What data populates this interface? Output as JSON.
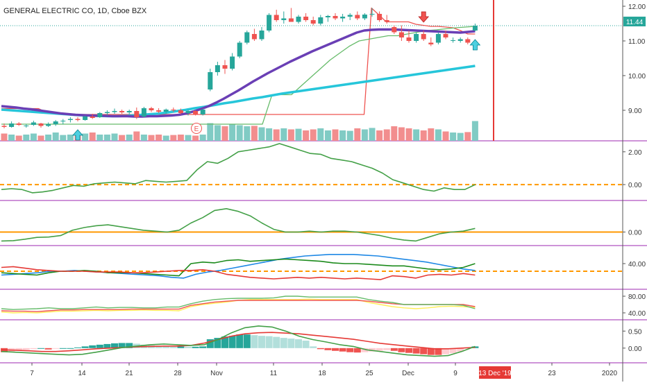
{
  "header": {
    "title": "GENERAL ELECTRIC CO, 1D, Cboe BZX"
  },
  "colors": {
    "up": "#26a69a",
    "down": "#ef5350",
    "vol_up": "#80cbc4",
    "vol_down": "#f28e8e",
    "ma_slow": "#6a3fb5",
    "ma_long": "#26c6da",
    "band_green": "#66bb6a",
    "band_red": "#ef5350",
    "zero": "#ff9800",
    "divider": "#9c27b0",
    "cursor": "#e53935",
    "macd_pos": "#26a69a",
    "macd_pos_light": "#b2dfdb",
    "macd_neg": "#ef5350",
    "macd_neg_light": "#ffcdd2"
  },
  "time_axis": {
    "labels": [
      "7",
      "14",
      "21",
      "28",
      "Nov",
      "11",
      "18",
      "25",
      "Dec",
      "9",
      "23",
      "2020"
    ],
    "cursor_label": "13 Dec '19"
  },
  "event_marker": {
    "label": "E"
  },
  "last_price_label": "11.44",
  "chart_data": [
    {
      "type": "candlestick",
      "title": "GENERAL ELECTRIC CO, 1D, Cboe BZX",
      "ylim": [
        8.2,
        12.1
      ],
      "yticks": [
        "12.00",
        "11.00",
        "10.00",
        "9.00"
      ],
      "ytick_values": [
        12,
        11,
        10,
        9
      ],
      "last_price": 11.44,
      "ohlc": [
        [
          8.55,
          8.62,
          8.48,
          8.52
        ],
        [
          8.52,
          8.68,
          8.5,
          8.62
        ],
        [
          8.62,
          8.66,
          8.55,
          8.58
        ],
        [
          8.55,
          8.6,
          8.5,
          8.56
        ],
        [
          8.58,
          8.7,
          8.55,
          8.65
        ],
        [
          8.62,
          8.64,
          8.5,
          8.55
        ],
        [
          8.55,
          8.65,
          8.52,
          8.6
        ],
        [
          8.6,
          8.72,
          8.55,
          8.68
        ],
        [
          8.68,
          8.75,
          8.6,
          8.7
        ],
        [
          8.72,
          8.8,
          8.65,
          8.75
        ],
        [
          8.75,
          8.8,
          8.68,
          8.72
        ],
        [
          8.72,
          8.85,
          8.7,
          8.82
        ],
        [
          8.82,
          8.9,
          8.75,
          8.78
        ],
        [
          8.8,
          8.95,
          8.78,
          8.92
        ],
        [
          8.92,
          9.0,
          8.85,
          8.95
        ],
        [
          8.95,
          9.05,
          8.9,
          8.98
        ],
        [
          8.98,
          9.02,
          8.9,
          8.94
        ],
        [
          8.94,
          9.02,
          8.88,
          8.98
        ],
        [
          8.98,
          9.08,
          8.75,
          8.8
        ],
        [
          8.82,
          9.1,
          8.8,
          9.06
        ],
        [
          9.06,
          9.1,
          8.95,
          9.0
        ],
        [
          9.0,
          9.06,
          8.92,
          8.96
        ],
        [
          8.96,
          9.05,
          8.9,
          9.02
        ],
        [
          9.02,
          9.08,
          8.95,
          9.0
        ],
        [
          9.0,
          9.05,
          8.88,
          8.92
        ],
        [
          8.92,
          9.02,
          8.85,
          8.98
        ],
        [
          8.98,
          9.0,
          8.85,
          8.88
        ],
        [
          8.88,
          9.05,
          8.85,
          9.02
        ],
        [
          9.6,
          10.2,
          9.55,
          10.1
        ],
        [
          10.1,
          10.4,
          10.0,
          10.3
        ],
        [
          10.3,
          10.45,
          10.05,
          10.2
        ],
        [
          10.2,
          10.65,
          10.15,
          10.55
        ],
        [
          10.55,
          11.0,
          10.5,
          10.95
        ],
        [
          10.95,
          11.3,
          10.9,
          11.25
        ],
        [
          11.2,
          11.35,
          11.0,
          11.05
        ],
        [
          11.05,
          11.4,
          11.0,
          11.3
        ],
        [
          11.3,
          11.8,
          11.25,
          11.75
        ],
        [
          11.75,
          11.9,
          11.55,
          11.6
        ],
        [
          11.6,
          11.85,
          11.5,
          11.65
        ],
        [
          11.65,
          11.95,
          11.55,
          11.55
        ],
        [
          11.55,
          11.75,
          11.5,
          11.7
        ],
        [
          11.7,
          11.8,
          11.55,
          11.6
        ],
        [
          11.6,
          11.7,
          11.45,
          11.5
        ],
        [
          11.5,
          11.75,
          11.45,
          11.68
        ],
        [
          11.68,
          11.75,
          11.55,
          11.72
        ],
        [
          11.72,
          11.8,
          11.6,
          11.65
        ],
        [
          11.65,
          11.78,
          11.55,
          11.7
        ],
        [
          11.7,
          11.8,
          11.6,
          11.75
        ],
        [
          11.75,
          11.85,
          11.6,
          11.65
        ],
        [
          11.65,
          11.8,
          11.6,
          11.76
        ],
        [
          11.76,
          11.95,
          11.7,
          11.78
        ],
        [
          11.78,
          11.85,
          11.55,
          11.6
        ],
        [
          11.6,
          11.75,
          11.5,
          11.55
        ],
        [
          11.4,
          11.45,
          11.2,
          11.25
        ],
        [
          11.25,
          11.45,
          11.0,
          11.1
        ],
        [
          11.1,
          11.3,
          10.95,
          11.0
        ],
        [
          11.0,
          11.25,
          10.95,
          11.2
        ],
        [
          11.2,
          11.3,
          11.0,
          11.05
        ],
        [
          10.95,
          11.1,
          10.85,
          10.9
        ],
        [
          10.95,
          11.25,
          10.9,
          11.2
        ],
        [
          11.2,
          11.3,
          11.05,
          11.1
        ],
        [
          11.0,
          11.1,
          10.95,
          11.02
        ],
        [
          11.0,
          11.1,
          10.95,
          11.05
        ],
        [
          11.05,
          11.1,
          10.9,
          10.95
        ],
        [
          11.3,
          11.5,
          11.28,
          11.44
        ]
      ],
      "ma_slow": [
        9.12,
        9.1,
        9.08,
        9.05,
        9.03,
        9.0,
        8.97,
        8.94,
        8.91,
        8.89,
        8.87,
        8.86,
        8.85,
        8.84,
        8.84,
        8.83,
        8.83,
        8.83,
        8.82,
        8.82,
        8.83,
        8.83,
        8.84,
        8.85,
        8.87,
        8.91,
        8.97,
        9.04,
        9.12,
        9.22,
        9.33,
        9.45,
        9.57,
        9.7,
        9.83,
        9.95,
        10.07,
        10.18,
        10.29,
        10.4,
        10.5,
        10.6,
        10.7,
        10.79,
        10.88,
        10.97,
        11.06,
        11.15,
        11.24,
        11.3,
        11.32,
        11.33,
        11.33,
        11.33,
        11.32,
        11.31,
        11.3,
        11.29,
        11.28,
        11.27,
        11.26,
        11.25,
        11.24,
        11.26,
        11.28
      ],
      "ma_long": [
        9.02,
        9.0,
        8.98,
        8.96,
        8.94,
        8.92,
        8.9,
        8.88,
        8.86,
        8.85,
        8.84,
        8.83,
        8.83,
        8.84,
        8.86,
        8.88,
        8.9,
        8.93,
        8.97,
        9.01,
        9.06,
        9.1,
        9.15,
        9.2,
        9.24,
        9.29,
        9.34,
        9.38,
        9.43,
        9.48,
        9.52,
        9.56,
        9.6,
        9.64,
        9.68,
        9.72,
        9.76,
        9.8,
        9.84,
        9.88,
        9.92,
        9.96,
        10.0,
        10.04,
        10.08,
        10.12,
        10.16,
        10.2,
        10.24,
        10.28
      ],
      "band_upper": [
        9.05,
        9.05,
        9.05,
        9.05,
        9.05,
        9.05,
        8.95,
        8.9,
        8.9,
        8.9,
        8.88,
        8.88,
        8.88,
        8.88,
        8.88,
        8.88,
        8.88,
        8.88,
        8.88,
        8.88,
        8.88,
        8.88,
        8.88,
        8.88,
        8.88,
        8.88,
        8.88,
        8.88,
        8.88,
        8.88,
        8.88,
        8.88,
        8.88,
        8.88,
        8.88,
        8.88,
        8.88,
        8.88,
        8.88,
        8.88,
        8.88,
        8.88,
        8.88,
        8.88,
        8.88,
        8.88,
        8.88,
        8.88,
        8.88,
        8.88,
        11.95,
        11.75,
        11.55,
        11.55,
        11.55,
        11.55,
        11.48,
        11.45,
        11.42,
        11.42,
        11.4,
        11.38,
        11.3,
        11.2,
        11.2
      ],
      "band_lower": [
        8.6,
        8.6,
        8.6,
        8.6,
        8.6,
        8.6,
        8.6,
        8.6,
        8.6,
        8.6,
        8.6,
        8.6,
        8.6,
        8.6,
        8.6,
        8.6,
        8.6,
        8.6,
        8.6,
        8.6,
        8.6,
        8.6,
        8.6,
        8.6,
        8.6,
        8.6,
        8.6,
        8.6,
        9.45,
        9.45,
        9.45,
        9.7,
        9.95,
        10.2,
        10.45,
        10.65,
        10.85,
        11.0,
        11.05,
        11.1,
        11.15,
        11.15,
        11.2,
        11.25,
        11.3,
        11.32,
        11.35,
        11.38,
        11.4,
        11.42
      ],
      "volume": [
        0.35,
        0.3,
        0.25,
        0.3,
        0.35,
        0.25,
        0.3,
        0.4,
        0.28,
        0.3,
        0.25,
        0.35,
        0.4,
        0.3,
        0.3,
        0.35,
        0.28,
        0.3,
        0.45,
        0.3,
        0.28,
        0.3,
        0.25,
        0.28,
        0.3,
        0.28,
        0.25,
        0.3,
        0.85,
        0.75,
        0.7,
        0.8,
        0.75,
        0.7,
        0.72,
        0.65,
        0.6,
        0.55,
        0.6,
        0.55,
        0.58,
        0.5,
        0.55,
        0.6,
        0.5,
        0.55,
        0.5,
        0.48,
        0.6,
        0.55,
        0.62,
        0.5,
        0.55,
        0.7,
        0.65,
        0.6,
        0.55,
        0.5,
        0.6,
        0.55,
        0.45,
        0.4,
        0.38,
        0.42,
        0.95
      ],
      "signals": [
        {
          "index": 10,
          "direction": "up"
        },
        {
          "index": 57,
          "direction": "down"
        },
        {
          "index": 64,
          "direction": "up"
        }
      ]
    },
    {
      "type": "line",
      "yticks": [
        "2.00",
        "0.00"
      ],
      "ytick_values": [
        2.0,
        0.0
      ],
      "ylim": [
        -0.8,
        2.5
      ],
      "reference": 0.0,
      "values": [
        -0.3,
        -0.25,
        -0.3,
        -0.5,
        -0.45,
        -0.35,
        -0.2,
        -0.05,
        -0.1,
        0.05,
        0.1,
        0.15,
        0.1,
        0.05,
        0.25,
        0.2,
        0.15,
        0.2,
        0.25,
        0.9,
        1.4,
        1.3,
        1.6,
        2.0,
        2.1,
        2.2,
        2.3,
        2.5,
        2.3,
        2.1,
        1.9,
        1.85,
        1.6,
        1.5,
        1.4,
        1.2,
        1.0,
        0.7,
        0.3,
        0.1,
        -0.1,
        -0.3,
        -0.4,
        -0.2,
        -0.3,
        -0.3,
        0.0
      ]
    },
    {
      "type": "line",
      "yticks": [
        "0.00"
      ],
      "ytick_values": [
        0.0
      ],
      "ylim": [
        -0.6,
        1.6
      ],
      "reference": 0.0,
      "values": [
        -0.5,
        -0.48,
        -0.4,
        -0.3,
        -0.28,
        -0.2,
        0.1,
        0.25,
        0.35,
        0.4,
        0.3,
        0.2,
        0.1,
        0.05,
        0.0,
        0.1,
        0.5,
        0.8,
        1.2,
        1.3,
        1.15,
        0.9,
        0.5,
        0.15,
        0.0,
        0.0,
        0.05,
        0.0,
        0.05,
        0.05,
        0.0,
        -0.1,
        -0.2,
        -0.35,
        -0.45,
        -0.5,
        -0.3,
        -0.1,
        0.0,
        0.05,
        0.2
      ]
    },
    {
      "type": "line",
      "yticks": [
        "40.00"
      ],
      "ytick_values": [
        40
      ],
      "ylim": [
        10,
        60
      ],
      "reference": 30,
      "series": [
        {
          "color": "#1e88e5",
          "values": [
            25,
            26,
            27,
            28,
            30,
            30,
            31,
            30,
            29,
            28,
            27,
            26,
            25,
            24,
            22,
            21,
            26,
            29,
            31,
            34,
            37,
            40,
            43,
            46,
            48,
            50,
            51,
            52,
            52,
            52,
            51,
            50,
            48,
            46,
            44,
            42,
            39,
            36,
            33,
            31
          ]
        },
        {
          "color": "#1b8a1b",
          "values": [
            28,
            27,
            26,
            25,
            28,
            30,
            30,
            31,
            30,
            28,
            28,
            28,
            27,
            26,
            25,
            24,
            40,
            42,
            41,
            44,
            45,
            43,
            44,
            45,
            46,
            45,
            44,
            43,
            41,
            40,
            40,
            39,
            38,
            37,
            37,
            35,
            33,
            32,
            33,
            35,
            40
          ]
        },
        {
          "color": "#e53935",
          "values": [
            35,
            36,
            34,
            32,
            31,
            30,
            30,
            30,
            29,
            29,
            29,
            28,
            28,
            29,
            30,
            31,
            31,
            32,
            30,
            26,
            24,
            22,
            21,
            20,
            21,
            22,
            21,
            22,
            21,
            20,
            21,
            20,
            19,
            24,
            23,
            21,
            25,
            26,
            25,
            27,
            25
          ]
        }
      ]
    },
    {
      "type": "line",
      "yticks": [
        "80.00",
        "40.00"
      ],
      "ytick_values": [
        80,
        40
      ],
      "ylim": [
        30,
        90
      ],
      "series": [
        {
          "color": "#ffee58",
          "values": [
            42,
            40,
            41,
            40,
            42,
            44,
            44,
            45,
            46,
            45,
            46,
            46,
            47,
            46,
            46,
            45,
            55,
            60,
            63,
            66,
            70,
            72,
            72,
            72,
            72,
            72,
            73,
            72,
            72,
            72,
            72,
            65,
            60,
            55,
            52,
            50,
            52,
            55,
            56,
            55,
            53
          ]
        },
        {
          "color": "#ef5350",
          "values": [
            45,
            44,
            44,
            43,
            45,
            47,
            47,
            48,
            48,
            48,
            48,
            49,
            49,
            49,
            49,
            49,
            58,
            62,
            66,
            68,
            70,
            70,
            70,
            70,
            70,
            70,
            70,
            70,
            70,
            70,
            70,
            68,
            65,
            62,
            60,
            60,
            60,
            60,
            60,
            60,
            55
          ]
        },
        {
          "color": "#66bb6a",
          "values": [
            50,
            48,
            49,
            50,
            52,
            50,
            50,
            52,
            54,
            52,
            53,
            53,
            52,
            52,
            54,
            54,
            62,
            68,
            72,
            74,
            75,
            75,
            75,
            76,
            80,
            80,
            78,
            78,
            78,
            78,
            78,
            72,
            68,
            65,
            60,
            60,
            60,
            60,
            60,
            58,
            50
          ]
        }
      ]
    },
    {
      "type": "bar",
      "yticks": [
        "0.50",
        "0.00"
      ],
      "ytick_values": [
        0.5,
        0.0
      ],
      "ylim": [
        -0.35,
        0.75
      ],
      "hist": [
        -0.12,
        -0.1,
        -0.08,
        -0.05,
        -0.03,
        0.0,
        -0.04,
        -0.02,
        0.0,
        0.0,
        0.02,
        0.05,
        0.08,
        0.1,
        0.12,
        0.14,
        0.15,
        0.15,
        0.13,
        0.1,
        0.08,
        0.06,
        0.05,
        0.04,
        0.05,
        0.04,
        0.04,
        0.05,
        0.26,
        0.3,
        0.34,
        0.36,
        0.4,
        0.4,
        0.38,
        0.36,
        0.35,
        0.33,
        0.3,
        0.28,
        0.26,
        0.22,
        0.05,
        -0.03,
        -0.06,
        -0.08,
        -0.1,
        -0.12,
        -0.13,
        -0.12,
        -0.1,
        -0.08,
        -0.06,
        -0.08,
        -0.12,
        -0.14,
        -0.16,
        -0.18,
        -0.2,
        -0.2,
        -0.18,
        -0.15,
        -0.1,
        0.02,
        0.05
      ],
      "macd": [
        -0.1,
        -0.12,
        -0.14,
        -0.16,
        -0.18,
        -0.2,
        -0.18,
        -0.12,
        -0.05,
        0.02,
        0.06,
        0.1,
        0.12,
        0.1,
        0.08,
        0.1,
        0.25,
        0.45,
        0.6,
        0.65,
        0.62,
        0.5,
        0.35,
        0.25,
        0.18,
        0.1,
        0.05,
        -0.05,
        -0.1,
        -0.15,
        -0.2,
        -0.22,
        -0.24,
        -0.22,
        -0.1,
        0.05
      ],
      "signal": [
        -0.05,
        -0.06,
        -0.08,
        -0.1,
        -0.1,
        -0.08,
        -0.05,
        -0.02,
        0.0,
        0.02,
        0.04,
        0.05,
        0.06,
        0.06,
        0.08,
        0.15,
        0.25,
        0.35,
        0.42,
        0.45,
        0.46,
        0.44,
        0.42,
        0.38,
        0.34,
        0.3,
        0.26,
        0.2,
        0.14,
        0.1,
        0.06,
        0.02,
        -0.02,
        -0.02,
        0.0,
        0.02
      ]
    }
  ]
}
